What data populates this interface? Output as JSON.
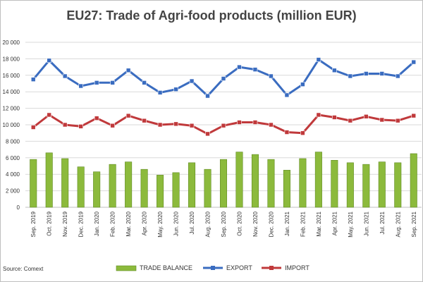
{
  "chart_data": {
    "type": "bar",
    "title": "EU27: Trade of Agri-food products (million EUR)",
    "source": "Source: Comext",
    "ylim": [
      0,
      20000
    ],
    "yticks": [
      0,
      2000,
      4000,
      6000,
      8000,
      10000,
      12000,
      14000,
      16000,
      18000,
      20000
    ],
    "ytick_labels": [
      "0",
      "2 000",
      "4 000",
      "6 000",
      "8 000",
      "10 000",
      "12 000",
      "14 000",
      "16 000",
      "18 000",
      "20 000"
    ],
    "grid": true,
    "legend_position": "bottom",
    "categories": [
      "Sep. 2019",
      "Oct. 2019",
      "Nov. 2019",
      "Dec. 2019",
      "Jan. 2020",
      "Feb. 2020",
      "Mar. 2020",
      "Apr. 2020",
      "May. 2020",
      "Jun. 2020",
      "Jul. 2020",
      "Aug. 2020",
      "Sep. 2020",
      "Oct. 2020",
      "Nov. 2020",
      "Dec. 2020",
      "Jan. 2021",
      "Feb. 2021",
      "Mar. 2021",
      "Apr. 2021",
      "May. 2021",
      "Jun. 2021",
      "Jul. 2021",
      "Aug. 2021",
      "Sep. 2021"
    ],
    "series": [
      {
        "name": "TRADE BALANCE",
        "kind": "bar",
        "color": "#8cba3c",
        "values": [
          5800,
          6600,
          5900,
          4900,
          4300,
          5200,
          5500,
          4600,
          3900,
          4200,
          5400,
          4600,
          5800,
          6700,
          6400,
          5800,
          4500,
          5900,
          6700,
          5700,
          5400,
          5200,
          5500,
          5400,
          6500
        ]
      },
      {
        "name": "EXPORT",
        "kind": "line",
        "color": "#3a6cc0",
        "values": [
          15500,
          17800,
          15900,
          14700,
          15100,
          15100,
          16600,
          15100,
          13900,
          14300,
          15300,
          13500,
          15600,
          17000,
          16700,
          15900,
          13600,
          14900,
          17900,
          16600,
          15900,
          16200,
          16200,
          15900,
          17600
        ]
      },
      {
        "name": "IMPORT",
        "kind": "line",
        "color": "#c0393b",
        "values": [
          9700,
          11200,
          10000,
          9800,
          10800,
          9900,
          11100,
          10500,
          10000,
          10100,
          9900,
          8900,
          9900,
          10300,
          10300,
          10000,
          9100,
          9000,
          11200,
          10900,
          10500,
          11000,
          10600,
          10500,
          11100
        ]
      }
    ]
  }
}
